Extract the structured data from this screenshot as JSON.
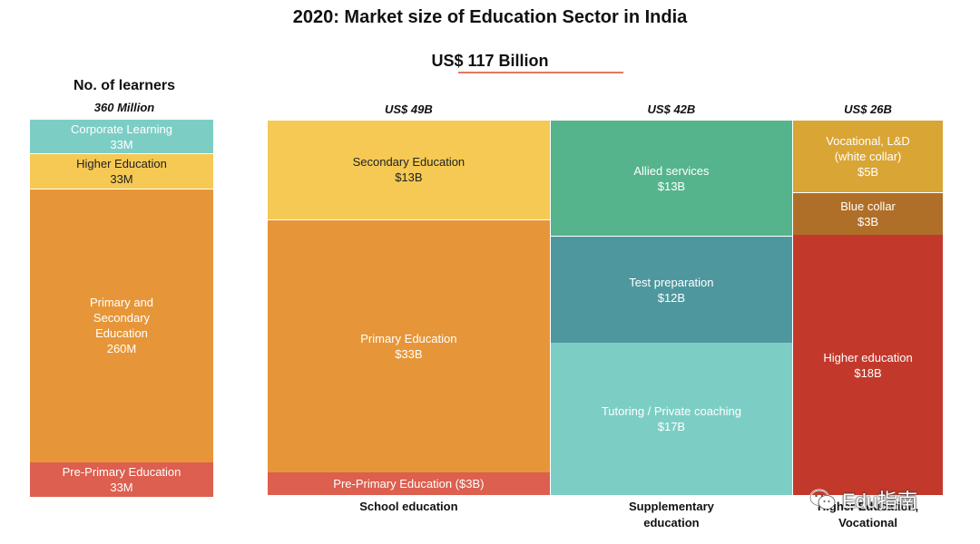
{
  "chart_data": {
    "type": "bar",
    "title": "2020: Market size of Education Sector in India",
    "subtitle": "US$ 117 Billion",
    "learners": {
      "title": "No. of learners",
      "total_label": "360 Million",
      "total": 360,
      "segments": [
        {
          "label": "Pre-Primary Education",
          "value_label": "33M",
          "value": 33,
          "color": "#dc5f4f"
        },
        {
          "label": "Primary and\nSecondary\nEducation",
          "value_label": "260M",
          "value": 260,
          "color": "#e69638"
        },
        {
          "label": "Higher Education",
          "value_label": "33M",
          "value": 33,
          "color": "#f5c953"
        },
        {
          "label": "Corporate Learning",
          "value_label": "33M",
          "value": 33,
          "color": "#7ccec5"
        }
      ]
    },
    "market": [
      {
        "category": "School education",
        "total_label": "US$ 49B",
        "total": 49,
        "segments": [
          {
            "label": "Pre-Primary Education ($3B)",
            "value_label": "",
            "value": 3,
            "color": "#dc5f4f"
          },
          {
            "label": "Primary Education",
            "value_label": "$33B",
            "value": 33,
            "color": "#e69638"
          },
          {
            "label": "Secondary Education",
            "value_label": "$13B",
            "value": 13,
            "color": "#f5c953"
          }
        ]
      },
      {
        "category": "Supplementary\neducation",
        "total_label": "US$ 42B",
        "total": 42,
        "segments": [
          {
            "label": "Tutoring / Private coaching",
            "value_label": "$17B",
            "value": 17,
            "color": "#7ccec5"
          },
          {
            "label": "Test preparation",
            "value_label": "$12B",
            "value": 12,
            "color": "#4f979e"
          },
          {
            "label": "Allied services",
            "value_label": "$13B",
            "value": 13,
            "color": "#55b48b"
          }
        ]
      },
      {
        "category": "Higher Education,\nVocational",
        "total_label": "US$ 26B",
        "total": 26,
        "segments": [
          {
            "label": "Higher education",
            "value_label": "$18B",
            "value": 18,
            "color": "#c2392b"
          },
          {
            "label": "Blue collar",
            "value_label": "$3B",
            "value": 3,
            "color": "#b06f28"
          },
          {
            "label": "Vocational, L&D\n(white collar)",
            "value_label": "$5B",
            "value": 5,
            "color": "#d9a535"
          }
        ]
      }
    ]
  },
  "watermark": {
    "text": "Edu指南",
    "icon": "wechat-icon"
  }
}
